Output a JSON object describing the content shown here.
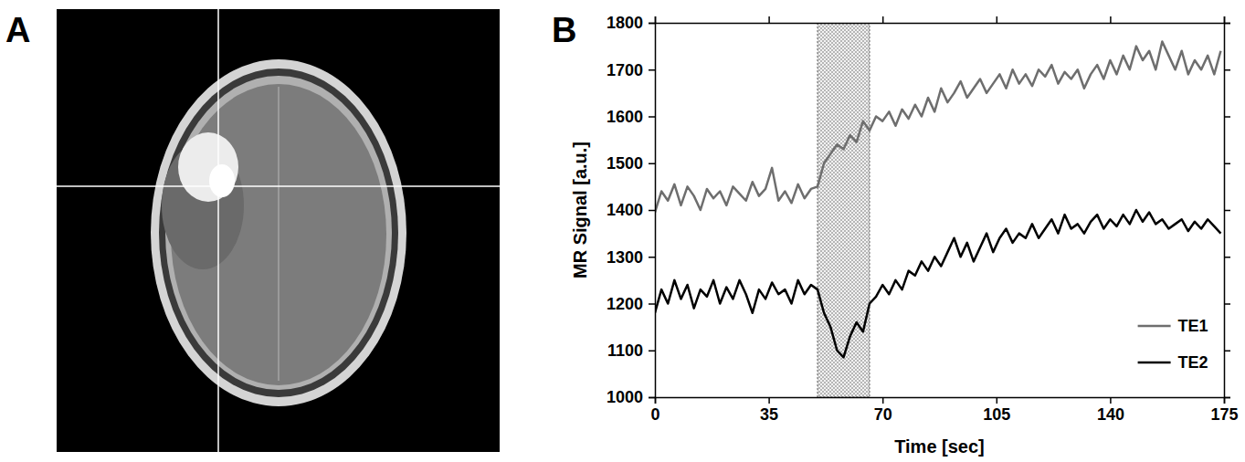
{
  "panels": [
    {
      "letter": "A"
    },
    {
      "letter": "B"
    }
  ],
  "chart_data": {
    "type": "line",
    "x_label": "Time [sec]",
    "y_label": "MR Signal [a.u.]",
    "xlim": [
      0,
      175
    ],
    "xticks": [
      0,
      35,
      70,
      105,
      140,
      175
    ],
    "ylim": [
      1000,
      1800
    ],
    "yticks": [
      1000,
      1100,
      1200,
      1300,
      1400,
      1500,
      1600,
      1700,
      1800
    ],
    "grid": false,
    "legend": "lower right",
    "highlight_x": [
      50,
      66
    ],
    "x": [
      0,
      2,
      4,
      6,
      8,
      10,
      12,
      14,
      16,
      18,
      20,
      22,
      24,
      26,
      28,
      30,
      32,
      34,
      36,
      38,
      40,
      42,
      44,
      46,
      48,
      50,
      52,
      54,
      56,
      58,
      60,
      62,
      64,
      66,
      68,
      70,
      72,
      74,
      76,
      78,
      80,
      82,
      84,
      86,
      88,
      90,
      92,
      94,
      96,
      98,
      100,
      102,
      104,
      106,
      108,
      110,
      112,
      114,
      116,
      118,
      120,
      122,
      124,
      126,
      128,
      130,
      132,
      134,
      136,
      138,
      140,
      142,
      144,
      146,
      148,
      150,
      152,
      154,
      156,
      158,
      160,
      162,
      164,
      166,
      168,
      170,
      172,
      174
    ],
    "series": [
      {
        "name": "TE1",
        "color": "#6e6e6e",
        "line_style": "solid",
        "values": [
          1395,
          1440,
          1420,
          1455,
          1410,
          1450,
          1430,
          1400,
          1445,
          1425,
          1440,
          1410,
          1450,
          1435,
          1420,
          1460,
          1430,
          1445,
          1490,
          1420,
          1440,
          1415,
          1455,
          1425,
          1445,
          1450,
          1500,
          1520,
          1540,
          1530,
          1560,
          1545,
          1590,
          1570,
          1600,
          1590,
          1610,
          1580,
          1615,
          1595,
          1625,
          1600,
          1640,
          1610,
          1660,
          1630,
          1650,
          1675,
          1640,
          1660,
          1680,
          1650,
          1670,
          1690,
          1660,
          1700,
          1670,
          1690,
          1665,
          1700,
          1685,
          1710,
          1670,
          1695,
          1680,
          1700,
          1660,
          1690,
          1710,
          1680,
          1720,
          1690,
          1730,
          1700,
          1750,
          1720,
          1740,
          1700,
          1760,
          1730,
          1700,
          1740,
          1690,
          1720,
          1700,
          1730,
          1690,
          1740
        ]
      },
      {
        "name": "TE2",
        "color": "#000000",
        "line_style": "solid",
        "values": [
          1180,
          1230,
          1200,
          1250,
          1210,
          1240,
          1190,
          1230,
          1215,
          1250,
          1200,
          1235,
          1210,
          1250,
          1220,
          1180,
          1230,
          1210,
          1245,
          1220,
          1230,
          1200,
          1250,
          1220,
          1240,
          1230,
          1180,
          1150,
          1100,
          1085,
          1130,
          1160,
          1140,
          1200,
          1215,
          1240,
          1220,
          1250,
          1230,
          1270,
          1260,
          1290,
          1270,
          1300,
          1280,
          1310,
          1340,
          1300,
          1330,
          1290,
          1320,
          1350,
          1310,
          1340,
          1360,
          1330,
          1350,
          1340,
          1370,
          1340,
          1360,
          1380,
          1350,
          1390,
          1360,
          1370,
          1350,
          1375,
          1390,
          1360,
          1380,
          1365,
          1390,
          1370,
          1400,
          1375,
          1395,
          1370,
          1380,
          1360,
          1370,
          1380,
          1355,
          1375,
          1360,
          1380,
          1365,
          1350
        ]
      }
    ]
  }
}
